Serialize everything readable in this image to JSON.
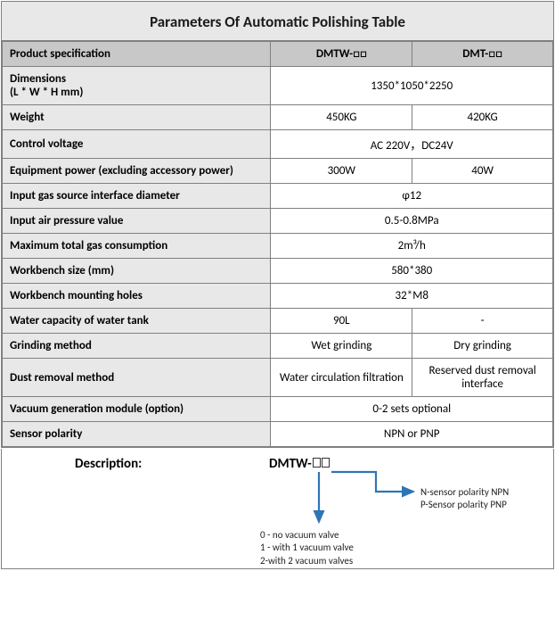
{
  "title": "Parameters Of Automatic Polishing Table",
  "header": {
    "spec": "Product specification",
    "col1": "DMTW-□□",
    "col2": "DMT-□□"
  },
  "rows": [
    {
      "label": "Dimensions\n(L * W * H mm)",
      "span": true,
      "val": "1350*1050*2250"
    },
    {
      "label": "Weight",
      "span": false,
      "v1": "450KG",
      "v2": "420KG"
    },
    {
      "label": "Control voltage",
      "span": true,
      "val": "AC 220V，DC24V"
    },
    {
      "label": "Equipment power (excluding accessory power)",
      "span": false,
      "v1": "300W",
      "v2": "40W"
    },
    {
      "label": "Input gas source interface diameter",
      "span": true,
      "val": "φ12"
    },
    {
      "label": "Input air pressure value",
      "span": true,
      "val": "0.5-0.8MPa"
    },
    {
      "label": "Maximum total gas consumption",
      "span": true,
      "val": "2m³/h"
    },
    {
      "label": "Workbench size (mm)",
      "span": true,
      "val": "580*380"
    },
    {
      "label": "Workbench mounting holes",
      "span": true,
      "val": "32*M8"
    },
    {
      "label": "Water capacity of water tank",
      "span": false,
      "v1": "90L",
      "v2": "-"
    },
    {
      "label": "Grinding method",
      "span": false,
      "v1": "Wet grinding",
      "v2": "Dry grinding"
    },
    {
      "label": "Dust removal method",
      "span": false,
      "v1": "Water circulation filtration",
      "v2": "Reserved dust removal interface"
    },
    {
      "label": "Vacuum generation module (option)",
      "span": true,
      "val": "0-2 sets optional"
    },
    {
      "label": "Sensor polarity",
      "span": true,
      "val": "NPN  or  PNP"
    }
  ],
  "description": {
    "label": "Description:",
    "code_prefix": "DMTW-",
    "sensor_npn": "N-sensor polarity NPN",
    "sensor_pnp": "P-Sensor polarity PNP",
    "valve0": "0 - no vacuum valve",
    "valve1": "1 - with 1 vacuum valve",
    "valve2": "2-with 2 vacuum valves"
  },
  "style": {
    "arrow_color": "#2e75b6",
    "header_bg": "#c8c8c8",
    "label_bg": "#e8e8e8",
    "value_bg": "#ffffff",
    "border_color": "#808080",
    "title_fontsize": 17,
    "body_fontsize": 13,
    "note_fontsize": 11
  }
}
